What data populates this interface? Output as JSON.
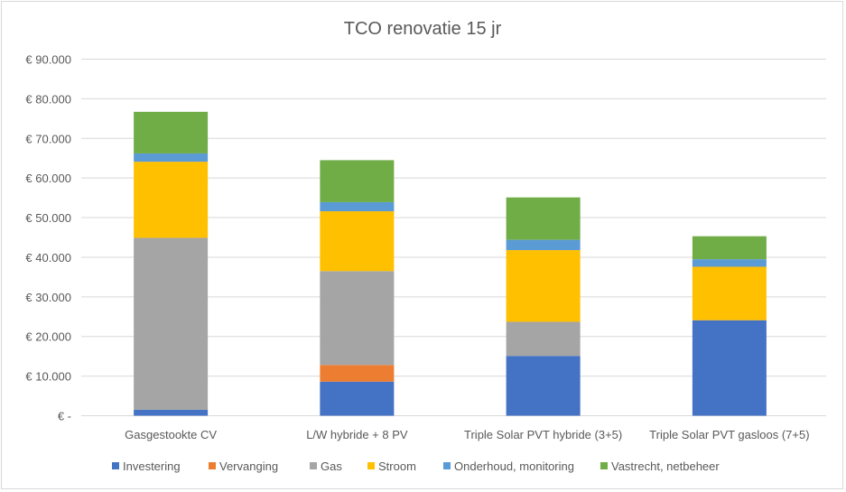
{
  "chart_data": {
    "type": "bar",
    "stacked": true,
    "title": "TCO renovatie 15 jr",
    "xlabel": "",
    "ylabel": "",
    "ylim": [
      0,
      90000
    ],
    "y_ticks": [
      0,
      10000,
      20000,
      30000,
      40000,
      50000,
      60000,
      70000,
      80000,
      90000
    ],
    "y_tick_labels": [
      "€ -",
      "€ 10.000",
      "€ 20.000",
      "€ 30.000",
      "€ 40.000",
      "€ 50.000",
      "€ 60.000",
      "€ 70.000",
      "€ 80.000",
      "€ 90.000"
    ],
    "grid": true,
    "legend_position": "bottom",
    "categories": [
      "Gasgestookte CV",
      "L/W hybride + 8 PV",
      "Triple Solar PVT hybride (3+5)",
      "Triple Solar PVT gasloos (7+5)"
    ],
    "series": [
      {
        "name": "Investering",
        "color": "#4472c4",
        "values": [
          1500,
          8600,
          15100,
          24100
        ]
      },
      {
        "name": "Vervanging",
        "color": "#ed7d31",
        "values": [
          0,
          4200,
          0,
          0
        ]
      },
      {
        "name": "Gas",
        "color": "#a5a5a5",
        "values": [
          43400,
          23700,
          8600,
          0
        ]
      },
      {
        "name": "Stroom",
        "color": "#ffc000",
        "values": [
          19200,
          15100,
          18100,
          13500
        ]
      },
      {
        "name": "Onderhoud, monitoring",
        "color": "#5b9bd5",
        "values": [
          2100,
          2300,
          2600,
          1900
        ]
      },
      {
        "name": "Vastrecht, netbeheer",
        "color": "#70ad47",
        "values": [
          10500,
          10600,
          10700,
          5800
        ]
      }
    ]
  }
}
